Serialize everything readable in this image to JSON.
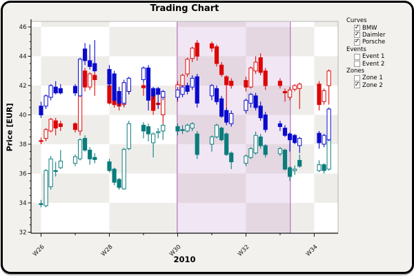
{
  "window": {
    "title": "Trading Chart"
  },
  "colors": {
    "window_bg": "#f2f1ee",
    "checker_gray": "#efedea",
    "checker_white": "#ffffff",
    "axis": "#111111",
    "frame_light": "#b6b6b6",
    "bmw": "#0a0acd",
    "daimler": "#dd0707",
    "porsche": "#0b7c7c",
    "zone_fill": "rgba(187,132,196,0.20)",
    "zone_border": "#b573b5"
  },
  "legend": {
    "sections": [
      {
        "title": "Curves",
        "items": [
          {
            "label": "BMW",
            "checked": true
          },
          {
            "label": "Daimler",
            "checked": true
          },
          {
            "label": "Porsche",
            "checked": true
          }
        ]
      },
      {
        "title": "Events",
        "items": [
          {
            "label": "Event 1",
            "checked": false
          },
          {
            "label": "Event 2",
            "checked": false
          }
        ]
      },
      {
        "title": "Zones",
        "items": [
          {
            "label": "Zone 1",
            "checked": false
          },
          {
            "label": "Zone 2",
            "checked": true
          }
        ]
      }
    ]
  },
  "chart_data": {
    "type": "candlestick",
    "title": "Trading Chart",
    "xlabel": "2010",
    "ylabel": "Price [EUR]",
    "x_unit": "trading days, weekly clusters W26-W34 of 2010 (day 0 = start of W26)",
    "ylim": [
      31.9,
      46.35
    ],
    "y_major_ticks": [
      32,
      34,
      36,
      38,
      40,
      42,
      44,
      46
    ],
    "y_minor_step": 0.5,
    "x_ticks": [
      {
        "day": 0,
        "label": "W26"
      },
      {
        "day": 7,
        "label": ""
      },
      {
        "day": 14,
        "label": "W28"
      },
      {
        "day": 21,
        "label": ""
      },
      {
        "day": 28,
        "label": "W30"
      },
      {
        "day": 35,
        "label": ""
      },
      {
        "day": 42,
        "label": "W32"
      },
      {
        "day": 49,
        "label": ""
      },
      {
        "day": 56,
        "label": "W34"
      }
    ],
    "background": {
      "checkerboard": true,
      "cell_width_weeks": 2,
      "cell_height_eur": 2
    },
    "zones": [
      {
        "name": "Zone 2",
        "from_day": 27.9,
        "to_day": 51.1
      }
    ],
    "candle_format": [
      "day",
      "open",
      "high",
      "low",
      "close"
    ],
    "series": [
      {
        "name": "BMW",
        "color": "#0a0acd",
        "candles": [
          [
            0,
            40.6,
            40.9,
            39.8,
            40.0
          ],
          [
            1,
            40.6,
            41.4,
            40.4,
            41.3
          ],
          [
            2,
            41.2,
            42.1,
            41.0,
            42.0
          ],
          [
            3,
            41.9,
            42.3,
            41.4,
            41.5
          ],
          [
            4,
            41.8,
            42.1,
            41.4,
            41.5
          ],
          [
            7,
            41.95,
            42.1,
            41.3,
            41.5
          ],
          [
            8,
            41.3,
            43.9,
            41.2,
            43.8
          ],
          [
            9,
            44.5,
            44.9,
            43.4,
            43.7
          ],
          [
            10,
            43.7,
            44.8,
            43.1,
            43.3
          ],
          [
            11,
            43.5,
            45.1,
            42.9,
            43.0
          ],
          [
            14,
            43.1,
            43.4,
            41.9,
            42.1
          ],
          [
            15,
            42.8,
            43.0,
            40.9,
            41.0
          ],
          [
            16,
            41.6,
            41.9,
            40.6,
            40.8
          ],
          [
            17,
            40.8,
            42.4,
            40.6,
            42.2
          ],
          [
            18,
            41.6,
            42.6,
            41.4,
            42.5
          ],
          [
            21,
            42.4,
            43.3,
            42.2,
            43.2
          ],
          [
            22,
            43.2,
            43.4,
            40.3,
            41.0
          ],
          [
            23,
            41.8,
            41.9,
            41.1,
            41.3
          ],
          [
            24,
            41.8,
            41.9,
            40.4,
            41.4
          ],
          [
            25,
            41.2,
            41.7,
            41.0,
            41.6
          ],
          [
            28,
            41.2,
            41.9,
            41.0,
            41.7
          ],
          [
            29,
            41.4,
            42.0,
            41.2,
            41.9
          ],
          [
            30,
            42.0,
            42.2,
            41.4,
            41.6
          ],
          [
            31,
            41.9,
            42.7,
            41.7,
            42.5
          ],
          [
            32,
            42.6,
            42.8,
            40.5,
            40.8
          ],
          [
            35,
            41.3,
            42.1,
            41.0,
            42.0
          ],
          [
            36,
            41.8,
            42.0,
            40.7,
            40.9
          ],
          [
            37,
            41.1,
            41.3,
            39.8,
            39.9
          ],
          [
            38,
            40.3,
            40.5,
            39.3,
            39.5
          ],
          [
            39,
            39.4,
            40.3,
            39.2,
            40.1
          ],
          [
            42,
            40.3,
            41.1,
            40.1,
            41.0
          ],
          [
            43,
            40.8,
            41.5,
            40.5,
            41.4
          ],
          [
            44,
            41.3,
            41.5,
            40.3,
            40.5
          ],
          [
            45,
            40.6,
            40.9,
            39.6,
            39.8
          ],
          [
            46,
            40.0,
            40.2,
            38.8,
            39.0
          ],
          [
            49,
            39.4,
            39.6,
            38.9,
            39.2
          ],
          [
            50,
            39.1,
            39.3,
            38.5,
            38.6
          ],
          [
            51,
            38.7,
            38.8,
            37.5,
            38.3
          ],
          [
            52,
            38.6,
            38.7,
            38.0,
            38.1
          ],
          [
            53,
            37.9,
            38.5,
            37.4,
            38.4
          ],
          [
            57,
            38.75,
            38.9,
            37.7,
            38.1
          ],
          [
            58,
            38.0,
            38.7,
            37.8,
            38.6
          ],
          [
            59,
            38.3,
            40.5,
            38.2,
            40.4
          ]
        ]
      },
      {
        "name": "Daimler",
        "color": "#dd0707",
        "candles": [
          [
            0,
            38.25,
            38.45,
            38.0,
            38.2
          ],
          [
            1,
            38.4,
            39.1,
            38.2,
            39.0
          ],
          [
            2,
            38.9,
            39.8,
            38.8,
            39.7
          ],
          [
            3,
            39.6,
            39.8,
            38.6,
            39.1
          ],
          [
            4,
            39.4,
            39.6,
            38.9,
            39.2
          ],
          [
            7,
            39.4,
            39.5,
            38.8,
            39.0
          ],
          [
            8,
            38.9,
            41.4,
            38.6,
            41.35
          ],
          [
            9,
            43.0,
            43.2,
            41.6,
            41.9
          ],
          [
            10,
            41.9,
            42.9,
            41.7,
            42.8
          ],
          [
            11,
            42.7,
            42.9,
            41.3,
            42.4
          ],
          [
            14,
            42.0,
            42.2,
            40.7,
            40.8
          ],
          [
            15,
            41.2,
            41.4,
            40.5,
            40.7
          ],
          [
            16,
            40.9,
            41.0,
            40.3,
            40.6
          ],
          [
            17,
            40.7,
            41.3,
            40.5,
            41.2
          ],
          [
            18,
            41.6,
            42.2,
            41.4,
            42.0
          ],
          [
            21,
            42.0,
            42.2,
            41.3,
            41.85
          ],
          [
            22,
            42.0,
            42.1,
            41.2,
            41.3
          ],
          [
            23,
            41.5,
            41.6,
            40.0,
            40.3
          ],
          [
            24,
            40.8,
            41.0,
            40.45,
            40.7
          ],
          [
            25,
            40.0,
            41.4,
            39.4,
            41.3
          ],
          [
            28,
            41.2,
            42.3,
            40.9,
            42.05
          ],
          [
            29,
            42.0,
            42.8,
            41.8,
            42.7
          ],
          [
            30,
            42.8,
            43.9,
            42.6,
            43.8
          ],
          [
            31,
            43.85,
            44.65,
            43.6,
            44.55
          ],
          [
            32,
            44.9,
            45.1,
            43.7,
            44.0
          ],
          [
            35,
            44.85,
            45.0,
            44.3,
            44.55
          ],
          [
            36,
            44.65,
            44.8,
            43.3,
            43.5
          ],
          [
            37,
            43.4,
            43.6,
            42.6,
            42.75
          ],
          [
            38,
            42.6,
            42.7,
            40.3,
            42.05
          ],
          [
            39,
            42.3,
            42.5,
            41.8,
            42.0
          ],
          [
            42,
            42.35,
            42.6,
            41.6,
            41.9
          ],
          [
            43,
            41.9,
            43.3,
            41.8,
            43.2
          ],
          [
            44,
            43.0,
            44.0,
            42.8,
            43.6
          ],
          [
            45,
            43.9,
            44.2,
            42.7,
            42.9
          ],
          [
            46,
            43.0,
            43.2,
            41.7,
            42.0
          ],
          [
            49,
            42.3,
            42.5,
            41.8,
            42.0
          ],
          [
            50,
            41.6,
            41.8,
            40.9,
            41.5
          ],
          [
            51,
            41.2,
            41.9,
            41.0,
            41.7
          ],
          [
            52,
            41.75,
            42.1,
            41.6,
            42.0
          ],
          [
            53,
            41.8,
            42.2,
            40.4,
            42.1
          ],
          [
            57,
            42.1,
            42.3,
            40.3,
            40.7
          ],
          [
            58,
            40.9,
            41.8,
            40.7,
            41.65
          ],
          [
            59,
            42.0,
            43.1,
            40.7,
            43.0
          ]
        ]
      },
      {
        "name": "Porsche",
        "color": "#0b7c7c",
        "candles": [
          [
            0,
            33.95,
            34.2,
            33.7,
            33.9
          ],
          [
            1,
            33.8,
            36.3,
            33.7,
            36.2
          ],
          [
            2,
            35.1,
            37.2,
            34.9,
            37.0
          ],
          [
            3,
            36.2,
            36.8,
            35.8,
            36.15
          ],
          [
            4,
            36.4,
            37.6,
            36.3,
            36.85
          ],
          [
            7,
            36.7,
            37.3,
            36.5,
            37.15
          ],
          [
            8,
            37.0,
            38.4,
            36.9,
            38.3
          ],
          [
            9,
            38.4,
            38.6,
            37.5,
            37.6
          ],
          [
            10,
            37.6,
            37.8,
            36.6,
            37.0
          ],
          [
            11,
            37.1,
            37.4,
            36.7,
            36.95
          ],
          [
            14,
            36.8,
            37.0,
            36.1,
            36.2
          ],
          [
            15,
            36.3,
            36.4,
            35.2,
            35.4
          ],
          [
            16,
            35.6,
            35.7,
            34.9,
            35.05
          ],
          [
            17,
            34.95,
            37.75,
            34.9,
            37.65
          ],
          [
            18,
            37.7,
            39.6,
            37.6,
            39.4
          ],
          [
            21,
            39.3,
            39.5,
            38.4,
            38.9
          ],
          [
            22,
            39.2,
            39.4,
            38.2,
            38.7
          ],
          [
            23,
            38.1,
            38.8,
            37.1,
            38.7
          ],
          [
            24,
            38.8,
            39.1,
            38.4,
            38.85
          ],
          [
            25,
            38.9,
            39.4,
            38.3,
            39.3
          ],
          [
            28,
            39.2,
            39.4,
            38.6,
            38.9
          ],
          [
            29,
            39.0,
            39.3,
            38.7,
            38.95
          ],
          [
            30,
            38.9,
            39.4,
            38.8,
            39.3
          ],
          [
            31,
            39.1,
            39.5,
            38.9,
            39.4
          ],
          [
            32,
            38.7,
            38.9,
            37.0,
            37.3
          ],
          [
            35,
            38.0,
            38.6,
            37.5,
            38.5
          ],
          [
            36,
            38.5,
            39.4,
            38.4,
            39.3
          ],
          [
            37,
            39.1,
            39.2,
            38.2,
            38.3
          ],
          [
            38,
            38.7,
            38.8,
            37.2,
            37.3
          ],
          [
            39,
            37.4,
            37.5,
            36.3,
            36.8
          ],
          [
            42,
            36.7,
            37.3,
            36.5,
            37.2
          ],
          [
            43,
            37.1,
            37.8,
            37.0,
            37.7
          ],
          [
            44,
            37.4,
            38.85,
            37.3,
            38.6
          ],
          [
            45,
            38.5,
            38.7,
            37.7,
            37.9
          ],
          [
            46,
            37.9,
            38.0,
            37.1,
            37.3
          ],
          [
            49,
            37.35,
            37.8,
            37.2,
            37.7
          ],
          [
            50,
            37.6,
            37.7,
            36.2,
            36.3
          ],
          [
            51,
            36.4,
            36.5,
            35.5,
            35.8
          ],
          [
            52,
            36.2,
            36.55,
            35.9,
            36.3
          ],
          [
            53,
            36.9,
            37.3,
            36.4,
            36.5
          ],
          [
            57,
            36.2,
            36.9,
            36.1,
            36.6
          ],
          [
            58,
            36.6,
            36.7,
            36.0,
            36.2
          ],
          [
            59,
            36.3,
            38.4,
            36.2,
            38.3
          ]
        ]
      }
    ]
  }
}
